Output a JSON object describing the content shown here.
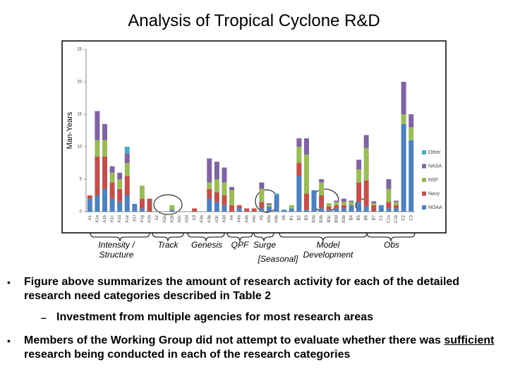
{
  "title": "Analysis of Tropical Cyclone R&D",
  "chart_data": {
    "type": "bar",
    "stacked": true,
    "y_label": "Man-Years",
    "ylim": [
      0,
      25
    ],
    "yticks": [
      0,
      5,
      10,
      15,
      20,
      25
    ],
    "grid": false,
    "legend": "right",
    "categories": [
      "A1",
      "A1a",
      "A1b",
      "A1c",
      "A1d",
      "A1e",
      "A1f",
      "A1g",
      "A1h",
      "A2",
      "A2a",
      "A2b",
      "A2c",
      "A2d",
      "A3",
      "A3a",
      "A3b",
      "A3c",
      "A3d",
      "A4",
      "A4a",
      "A4b",
      "A4c",
      "A5",
      "A5a",
      "A5b",
      "A6",
      "B1",
      "B2",
      "B3",
      "B3a",
      "B3b",
      "B3c",
      "B3d",
      "B3e",
      "B4",
      "B5",
      "B6",
      "B7",
      "C1",
      "C1a",
      "C1b",
      "C2",
      "C3"
    ],
    "series": [
      {
        "name": "NOAA",
        "color": "#4f81bd",
        "values": [
          2,
          2.5,
          3.5,
          2,
          1.5,
          2.5,
          1.2,
          0.5,
          0,
          0,
          0,
          0.3,
          0,
          0,
          0,
          0,
          2,
          1.5,
          1,
          0,
          0.5,
          0,
          0,
          0.5,
          0.8,
          2.5,
          0.3,
          0.5,
          5.5,
          0.3,
          3.3,
          0.5,
          0.3,
          0.5,
          0.5,
          1,
          1.5,
          0.8,
          0,
          1,
          0.5,
          0.5,
          13.5,
          11
        ]
      },
      {
        "name": "Navy",
        "color": "#c0504d",
        "values": [
          0.5,
          6,
          5,
          2.5,
          2,
          3,
          0,
          1.5,
          2,
          0,
          0,
          0,
          0,
          0,
          0.5,
          0,
          1.5,
          1.5,
          1.5,
          1,
          0.5,
          0.5,
          0.5,
          1,
          0,
          0,
          0,
          0,
          2,
          2.5,
          0,
          2,
          0.5,
          0.5,
          0.5,
          0,
          3,
          4,
          1,
          0,
          1,
          0.5,
          0,
          0
        ]
      },
      {
        "name": "NSF",
        "color": "#9bbb59",
        "values": [
          0,
          2.5,
          2.5,
          1.5,
          1.5,
          2,
          0,
          2,
          0,
          0,
          0,
          0.7,
          0,
          0,
          0,
          0,
          1,
          2,
          2,
          2.3,
          0,
          0,
          0,
          2,
          0.3,
          0,
          0,
          0.5,
          2.5,
          6,
          0,
          2,
          0.5,
          0.5,
          0.5,
          0.5,
          2,
          5,
          0.3,
          0,
          2,
          0.5,
          1.5,
          2
        ]
      },
      {
        "name": "NASA",
        "color": "#8064a2",
        "values": [
          0,
          4.5,
          2.5,
          1,
          1,
          1.5,
          0,
          0,
          0,
          0,
          0,
          0,
          0,
          0,
          0,
          0,
          3.7,
          2.7,
          2.3,
          0.5,
          0,
          0,
          0,
          1,
          0.2,
          0,
          0,
          0,
          1.3,
          2.5,
          0,
          0.5,
          0,
          0.2,
          0.5,
          0.2,
          1.5,
          2,
          0.3,
          0,
          1.5,
          0.2,
          5,
          2
        ]
      },
      {
        "name": "Other",
        "color": "#4bacc6",
        "values": [
          0,
          0,
          0,
          0,
          0,
          1,
          0,
          0,
          0,
          0,
          0,
          0,
          0,
          0,
          0,
          0,
          0,
          0,
          0,
          0,
          0,
          0,
          0,
          0,
          0,
          0.3,
          0,
          0,
          0,
          0,
          0,
          0,
          0,
          0,
          0,
          0,
          0,
          0,
          0,
          0,
          0,
          0,
          0,
          0
        ]
      }
    ]
  },
  "group_labels": [
    "Intensity / Structure",
    "Track",
    "Genesis",
    "QPF",
    "Surge",
    "[Seasonal]",
    "Model Development",
    "Obs"
  ],
  "bullets": [
    {
      "text": "Figure above summarizes the amount of research activity for each of the detailed research need categories described in Table 2",
      "sub": "Investment from multiple agencies for most research areas"
    },
    {
      "parts": [
        "Members of the Working Group did not attempt to evaluate whether there was ",
        "sufficient",
        " research being conducted in each of the research categories"
      ]
    }
  ]
}
